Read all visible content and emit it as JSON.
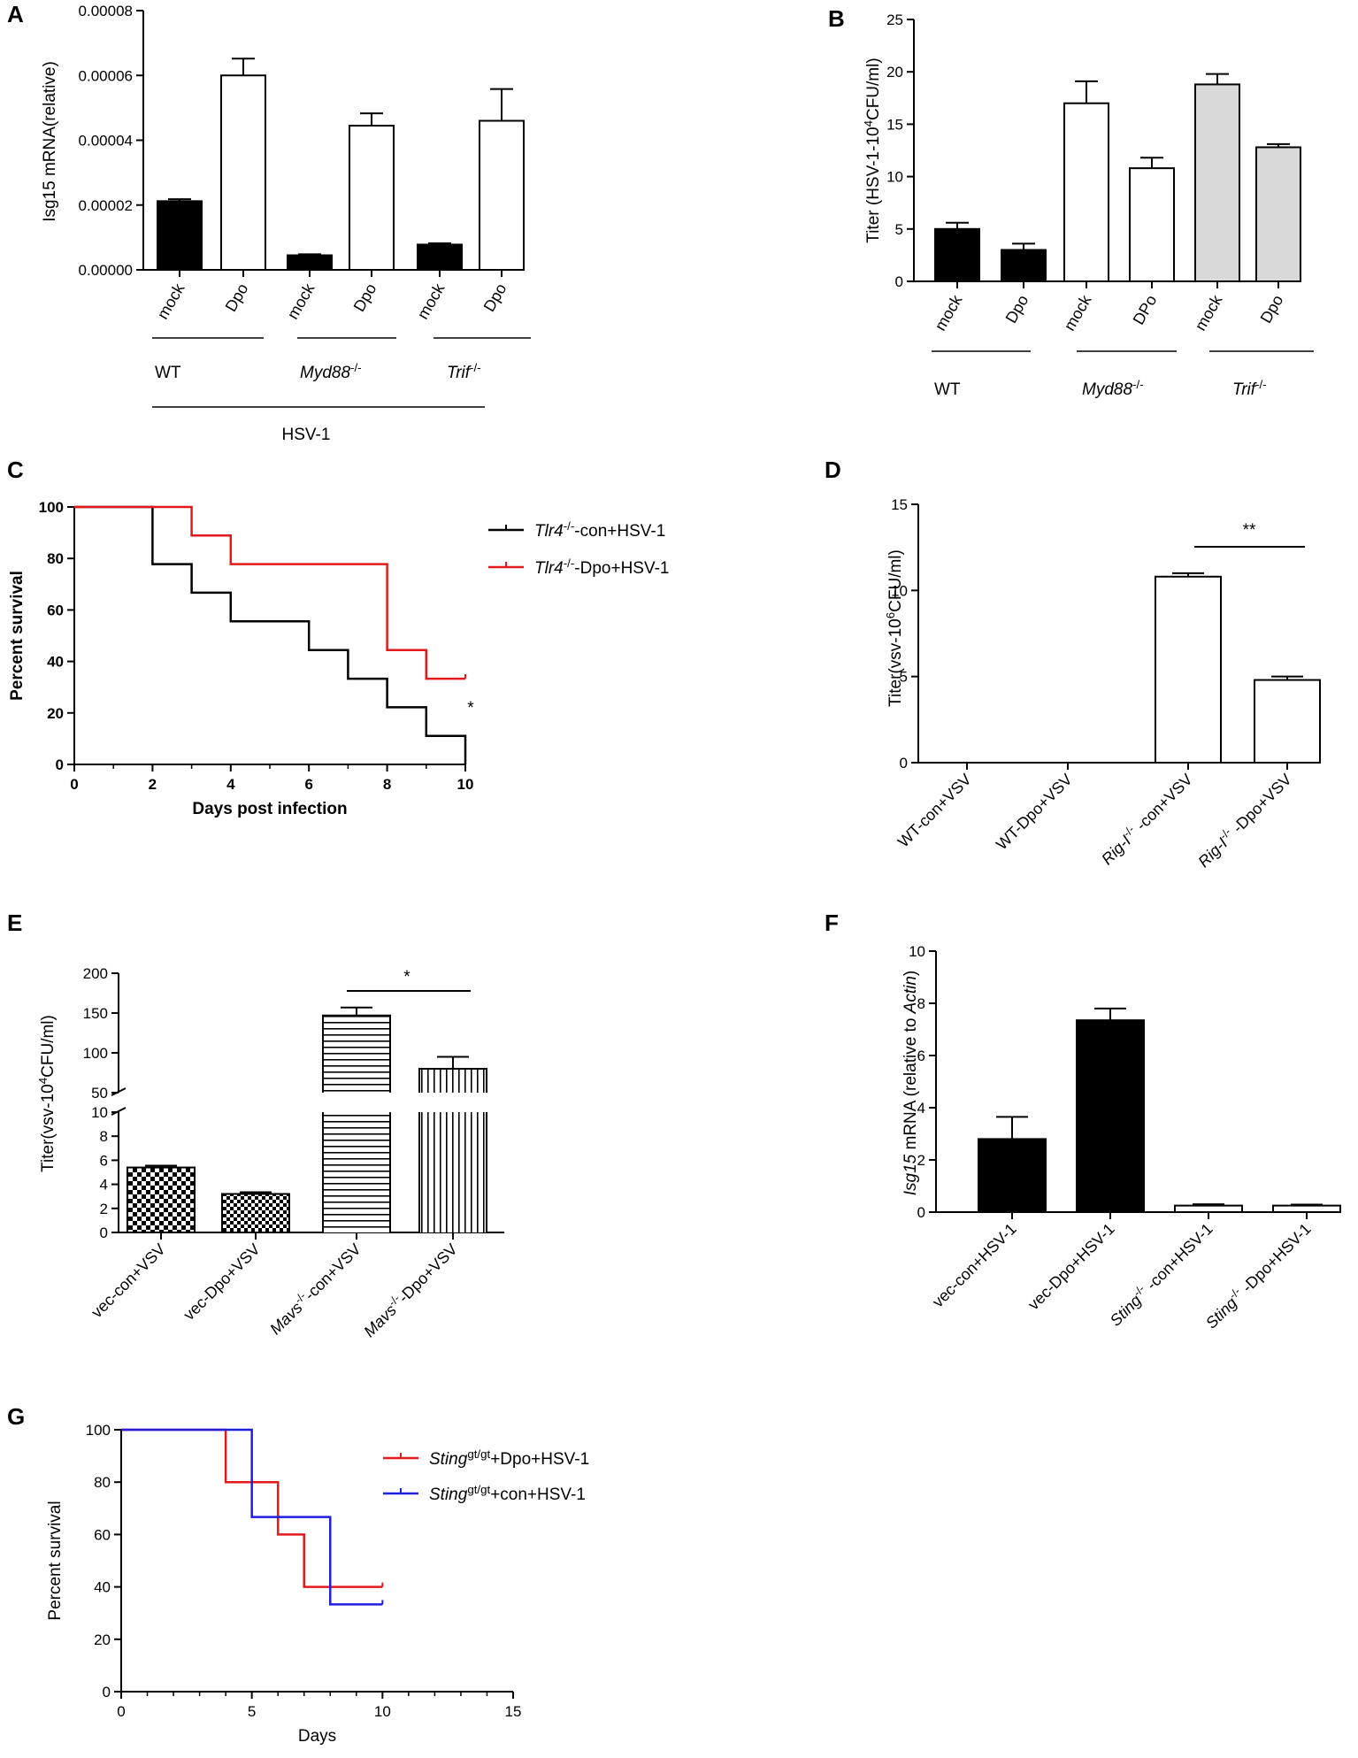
{
  "colors": {
    "black": "#000000",
    "white": "#ffffff",
    "gray": "#d9d9d9",
    "red": "#e31a1c",
    "blue": "#1f1fe0"
  },
  "chart_data": [
    {
      "panel": "A",
      "type": "bar",
      "ylabel": "Isg15 mRNA(relative)",
      "ylim": [
        0,
        8e-05
      ],
      "yticks": [
        "0.00000",
        "0.00002",
        "0.00004",
        "0.00006",
        "0.00008"
      ],
      "categories": [
        "mock",
        "Dpo",
        "mock",
        "Dpo",
        "mock",
        "Dpo"
      ],
      "values": [
        2.12e-05,
        6e-05,
        4.5e-06,
        4.45e-05,
        7.8e-06,
        4.6e-05
      ],
      "errors": [
        6e-07,
        5.2e-06,
        3e-07,
        3.8e-06,
        4e-07,
        9.8e-06
      ],
      "fills": [
        "black",
        "white",
        "black",
        "white",
        "black",
        "white"
      ],
      "groups": [
        {
          "label": "WT",
          "italic": false,
          "sup": ""
        },
        {
          "label": "Myd88",
          "italic": true,
          "sup": "-/-"
        },
        {
          "label": "Trif",
          "italic": true,
          "sup": "-/-"
        }
      ],
      "footer": "HSV-1"
    },
    {
      "panel": "B",
      "type": "bar",
      "ylabel_pre": "Titer  (HSV-1-10",
      "ylabel_sup": "4",
      "ylabel_post": "CFU/ml)",
      "ylim": [
        0,
        25
      ],
      "yticks": [
        "0",
        "5",
        "10",
        "15",
        "20",
        "25"
      ],
      "categories": [
        "mock",
        "Dpo",
        "mock",
        "DPo",
        "mock",
        "Dpo"
      ],
      "values": [
        5.0,
        3.0,
        17.0,
        10.8,
        18.8,
        12.8
      ],
      "errors": [
        0.6,
        0.6,
        2.1,
        1.0,
        1.0,
        0.3
      ],
      "fills": [
        "black",
        "black",
        "white",
        "white",
        "gray",
        "gray"
      ],
      "groups": [
        {
          "label": "WT",
          "italic": false,
          "sup": ""
        },
        {
          "label": "Myd88",
          "italic": true,
          "sup": "-/-"
        },
        {
          "label": "Trif",
          "italic": true,
          "sup": "-/-"
        }
      ]
    },
    {
      "panel": "C",
      "type": "line",
      "xlabel": "Days post infection",
      "ylabel": "Percent survival",
      "xlim": [
        0,
        10
      ],
      "ylim": [
        0,
        100
      ],
      "xticks": [
        "0",
        "2",
        "4",
        "6",
        "8",
        "10"
      ],
      "yticks": [
        "0",
        "20",
        "40",
        "60",
        "80",
        "100"
      ],
      "series": [
        {
          "name_it": "Tlr4",
          "name_sup": "-/-",
          "name_rest": "-con+HSV-1",
          "color": "black",
          "x": [
            0,
            2,
            3,
            4,
            6,
            7,
            8,
            9,
            10
          ],
          "y": [
            100,
            77.8,
            66.7,
            55.6,
            44.4,
            33.3,
            22.2,
            11.1,
            0
          ]
        },
        {
          "name_it": "Tlr4",
          "name_sup": "-/-",
          "name_rest": "-Dpo+HSV-1",
          "color": "red",
          "x": [
            0,
            3,
            4,
            8,
            9,
            10
          ],
          "y": [
            100,
            88.9,
            77.8,
            44.4,
            33.3,
            33.3
          ]
        }
      ],
      "annotation": "*"
    },
    {
      "panel": "D",
      "type": "bar",
      "ylabel_pre": "Titer(vsv-10",
      "ylabel_sup": "6",
      "ylabel_post": "CFU/ml)",
      "ylim": [
        0,
        15
      ],
      "yticks": [
        "0",
        "5",
        "10",
        "15"
      ],
      "categories": [
        {
          "it": "",
          "sup": "",
          "rest": "WT-con+VSV"
        },
        {
          "it": "",
          "sup": "",
          "rest": "WT-Dpo+VSV"
        },
        {
          "it": "Rig-I",
          "sup": "-/-",
          "rest": " -con+VSV"
        },
        {
          "it": "Rig-I",
          "sup": "-/-",
          "rest": " -Dpo+VSV"
        }
      ],
      "values": [
        0,
        0,
        10.8,
        4.8
      ],
      "errors": [
        0,
        0,
        0.2,
        0.2
      ],
      "significance": "**"
    },
    {
      "panel": "E",
      "type": "bar",
      "ylabel_pre": "Titer(vsv-10",
      "ylabel_sup": "4",
      "ylabel_post": "CFU/ml)",
      "axis_break": true,
      "ylim_lower": [
        0,
        10
      ],
      "ylim_upper": [
        50,
        200
      ],
      "yticks_lower": [
        "0",
        "2",
        "4",
        "6",
        "8",
        "10"
      ],
      "yticks_upper": [
        "50",
        "100",
        "150",
        "200"
      ],
      "categories": [
        {
          "it": "",
          "sup": "",
          "rest": "vec-con+VSV"
        },
        {
          "it": "",
          "sup": "",
          "rest": "vec-Dpo+VSV"
        },
        {
          "it": "Mavs",
          "sup": "-/-",
          "rest": "-con+VSV"
        },
        {
          "it": "Mavs",
          "sup": "-/-",
          "rest": "-Dpo+VSV"
        }
      ],
      "values": [
        5.4,
        3.2,
        147,
        80
      ],
      "errors": [
        0.15,
        0.15,
        10,
        15
      ],
      "patterns": [
        "checker",
        "checker-fine",
        "horizontal",
        "vertical"
      ],
      "significance": "*"
    },
    {
      "panel": "F",
      "type": "bar",
      "ylabel_it": "Isg15",
      "ylabel_mid": " mRNA (relative to ",
      "ylabel_it2": "Actin",
      "ylabel_end": ")",
      "ylim": [
        0,
        10
      ],
      "yticks": [
        "0",
        "2",
        "4",
        "6",
        "8",
        "10"
      ],
      "categories": [
        {
          "it": "",
          "sup": "",
          "rest": "vec-con+HSV-1"
        },
        {
          "it": "",
          "sup": "",
          "rest": "vec-Dpo+HSV-1"
        },
        {
          "it": "Sting",
          "sup": "-/-",
          "rest": " -con+HSV-1"
        },
        {
          "it": "Sting",
          "sup": "-/-",
          "rest": " -Dpo+HSV-1"
        }
      ],
      "values": [
        2.8,
        7.35,
        0.25,
        0.25
      ],
      "errors": [
        0.85,
        0.45,
        0.05,
        0.04
      ],
      "fills": [
        "black",
        "black",
        "white",
        "white"
      ]
    },
    {
      "panel": "G",
      "type": "line",
      "xlabel": "Days",
      "ylabel": "Percent survival",
      "xlim": [
        0,
        15
      ],
      "ylim": [
        0,
        100
      ],
      "xticks": [
        "0",
        "5",
        "10",
        "15"
      ],
      "yticks": [
        "0",
        "20",
        "40",
        "60",
        "80",
        "100"
      ],
      "series": [
        {
          "name_it": "Sting",
          "name_sup": "gt/gt",
          "name_rest": "+Dpo+HSV-1",
          "color": "red",
          "x": [
            0,
            4,
            6,
            7,
            10
          ],
          "y": [
            100,
            80,
            60,
            40,
            40
          ]
        },
        {
          "name_it": "Sting",
          "name_sup": "gt/gt",
          "name_rest": "+con+HSV-1",
          "color": "blue",
          "x": [
            0,
            5,
            8,
            10
          ],
          "y": [
            100,
            66.7,
            33.3,
            33.3
          ]
        }
      ]
    }
  ]
}
